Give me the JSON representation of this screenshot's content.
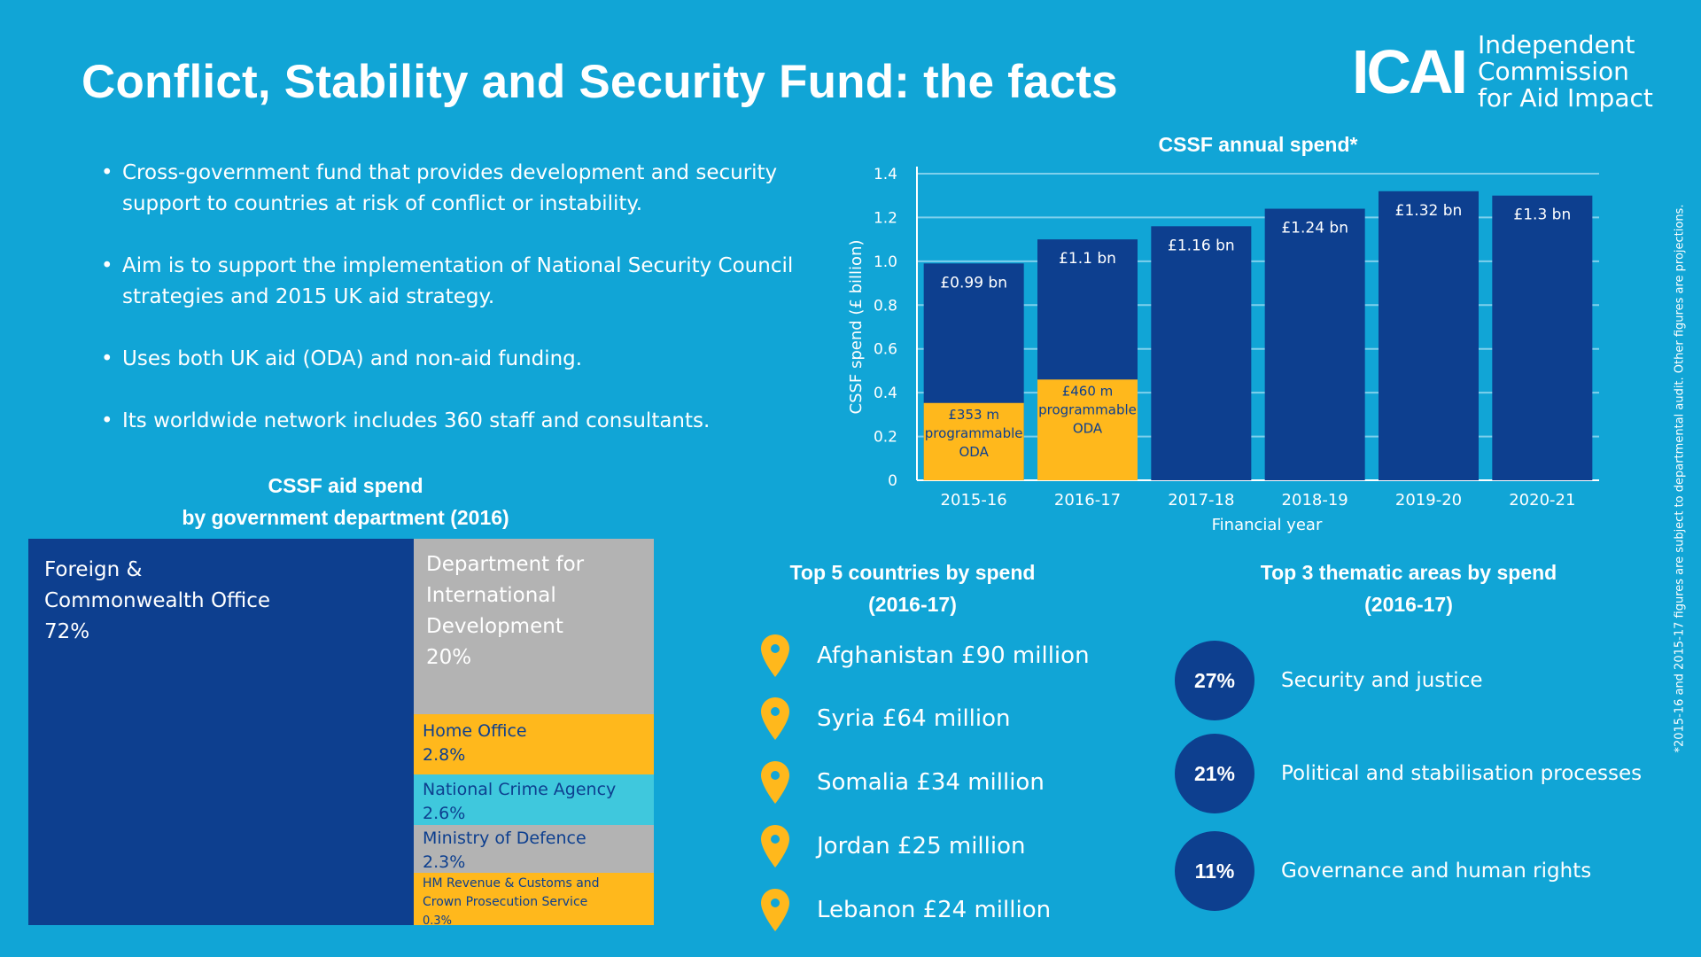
{
  "title": "Conflict, Stability and Security Fund: the facts",
  "logo": {
    "mark": "ICAI",
    "lines": [
      "Independent",
      "Commission",
      "for Aid Impact"
    ]
  },
  "bullets": [
    "Cross-government fund that provides development and security support to countries at risk of conflict or instability.",
    "Aim is to support the implementation of National Security Council strategies and 2015 UK aid strategy.",
    "Uses both UK aid (ODA) and non-aid funding.",
    "Its worldwide network includes 360 staff and consultants."
  ],
  "chart_data": {
    "type": "bar",
    "title": "CSSF annual spend*",
    "xlabel": "Financial year",
    "ylabel": "CSSF spend (£ billion)",
    "ylim": [
      0,
      1.4
    ],
    "yticks": [
      "0",
      "0.2",
      "0.4",
      "0.6",
      "0.8",
      "1.0",
      "1.2",
      "1.4"
    ],
    "categories": [
      "2015-16",
      "2016-17",
      "2017-18",
      "2018-19",
      "2019-20",
      "2020-21"
    ],
    "values": [
      0.99,
      1.1,
      1.16,
      1.24,
      1.32,
      1.3
    ],
    "value_labels": [
      "£0.99 bn",
      "£1.1 bn",
      "£1.16 bn",
      "£1.24 bn",
      "£1.32 bn",
      "£1.3 bn"
    ],
    "programmable_oda": [
      0.353,
      0.46,
      null,
      null,
      null,
      null
    ],
    "oda_labels": [
      [
        "£353 m",
        "programmable",
        "ODA"
      ],
      [
        "£460 m",
        "programmable",
        "ODA"
      ]
    ],
    "colors": {
      "total": "#0d3f8f",
      "oda": "#ffb81c",
      "gridline": "#7fd0ec"
    }
  },
  "treemap": {
    "title_lines": [
      "CSSF aid spend",
      "by government  department (2016)"
    ],
    "items": [
      {
        "name": "Foreign & Commonwealth Office",
        "lines": [
          "Foreign &",
          "Commonwealth Office"
        ],
        "pct": "72%",
        "value": 72,
        "color": "#0d3f8f"
      },
      {
        "name": "Department for International Development",
        "lines": [
          "Department for",
          "International",
          "Development"
        ],
        "pct": "20%",
        "value": 20,
        "color": "#b3b3b3"
      },
      {
        "name": "Home Office",
        "lines": [
          "Home Office"
        ],
        "pct": "2.8%",
        "value": 2.8,
        "color": "#ffb81c"
      },
      {
        "name": "National Crime Agency",
        "lines": [
          "National Crime Agency"
        ],
        "pct": "2.6%",
        "value": 2.6,
        "color": "#3fc8dd"
      },
      {
        "name": "Ministry of Defence",
        "lines": [
          "Ministry of Defence"
        ],
        "pct": "2.3%",
        "value": 2.3,
        "color": "#b3b3b3"
      },
      {
        "name": "HM Revenue & Customs and Crown Prosecution Service",
        "lines": [
          "HM Revenue & Customs and",
          "Crown Prosecution Service"
        ],
        "pct": "0.3%",
        "value": 0.3,
        "color": "#ffb81c"
      }
    ]
  },
  "countries": {
    "title_lines": [
      "Top 5 countries by spend",
      "(2016-17)"
    ],
    "items": [
      "Afghanistan £90 million",
      "Syria £64 million",
      "Somalia £34 million",
      "Jordan £25 million",
      "Lebanon £24 million"
    ],
    "pin_color": "#ffb81c",
    "pin_icon": "map-pin-icon"
  },
  "themes": {
    "title_lines": [
      "Top 3  thematic areas by spend",
      "(2016-17)"
    ],
    "items": [
      {
        "pct": "27%",
        "label": "Security and justice"
      },
      {
        "pct": "21%",
        "label": "Political and stabilisation processes"
      },
      {
        "pct": "11%",
        "label": "Governance and human rights"
      }
    ]
  },
  "footnote": "*2015-16 and 2015-17 figures are subject to departmental audit. Other figures are projections."
}
